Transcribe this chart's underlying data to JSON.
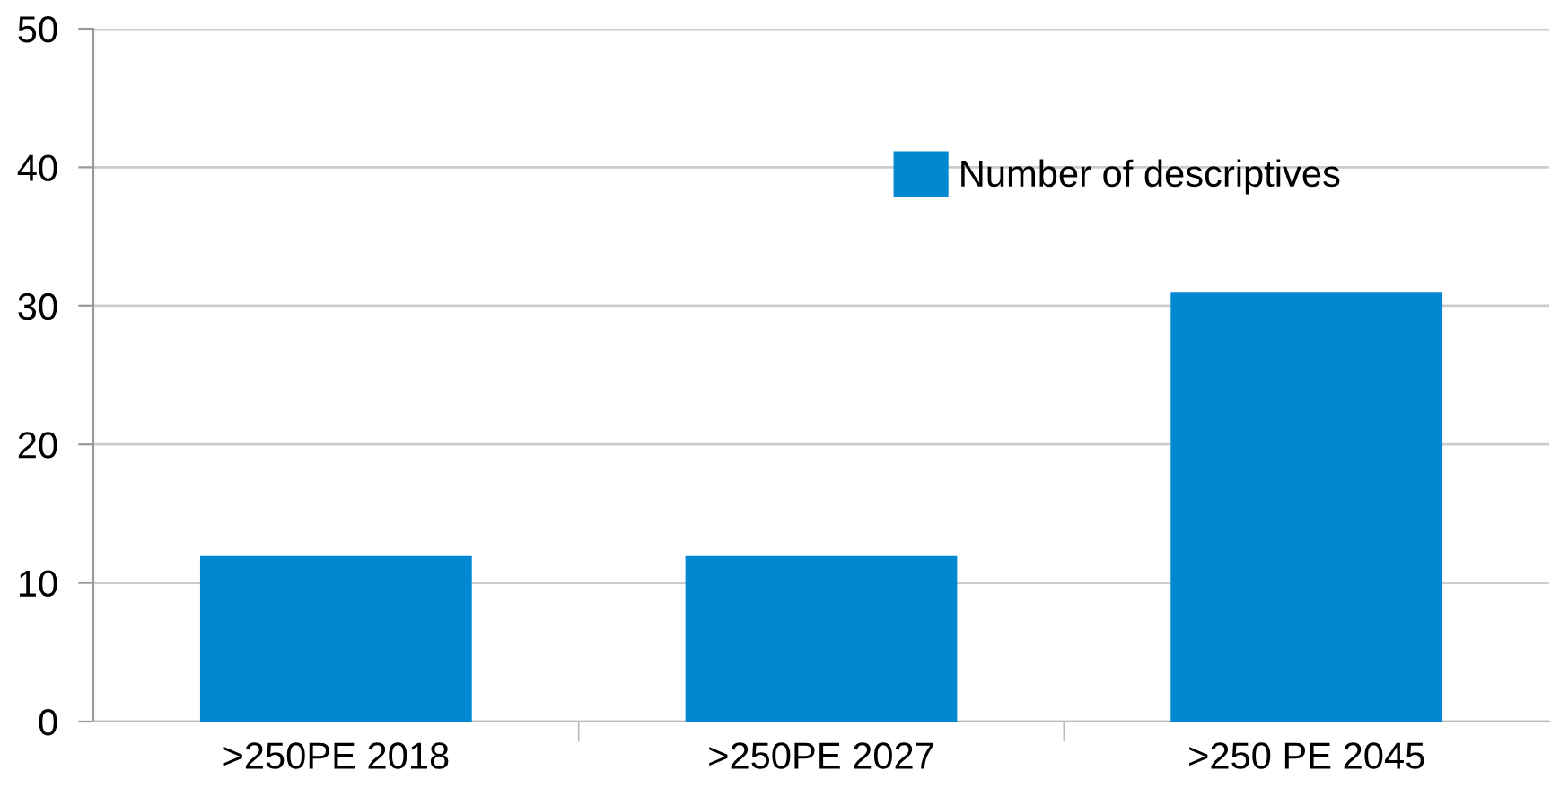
{
  "chart_data": {
    "type": "bar",
    "categories": [
      ">250PE 2018",
      ">250PE 2027",
      ">250 PE 2045"
    ],
    "series": [
      {
        "name": "Number of descriptives",
        "color": "#0089d0",
        "values": [
          12,
          12,
          31
        ]
      }
    ],
    "ylim": [
      0,
      50
    ],
    "yticks": [
      0,
      10,
      20,
      30,
      40,
      50
    ],
    "grid": "y",
    "legend": "top right"
  }
}
